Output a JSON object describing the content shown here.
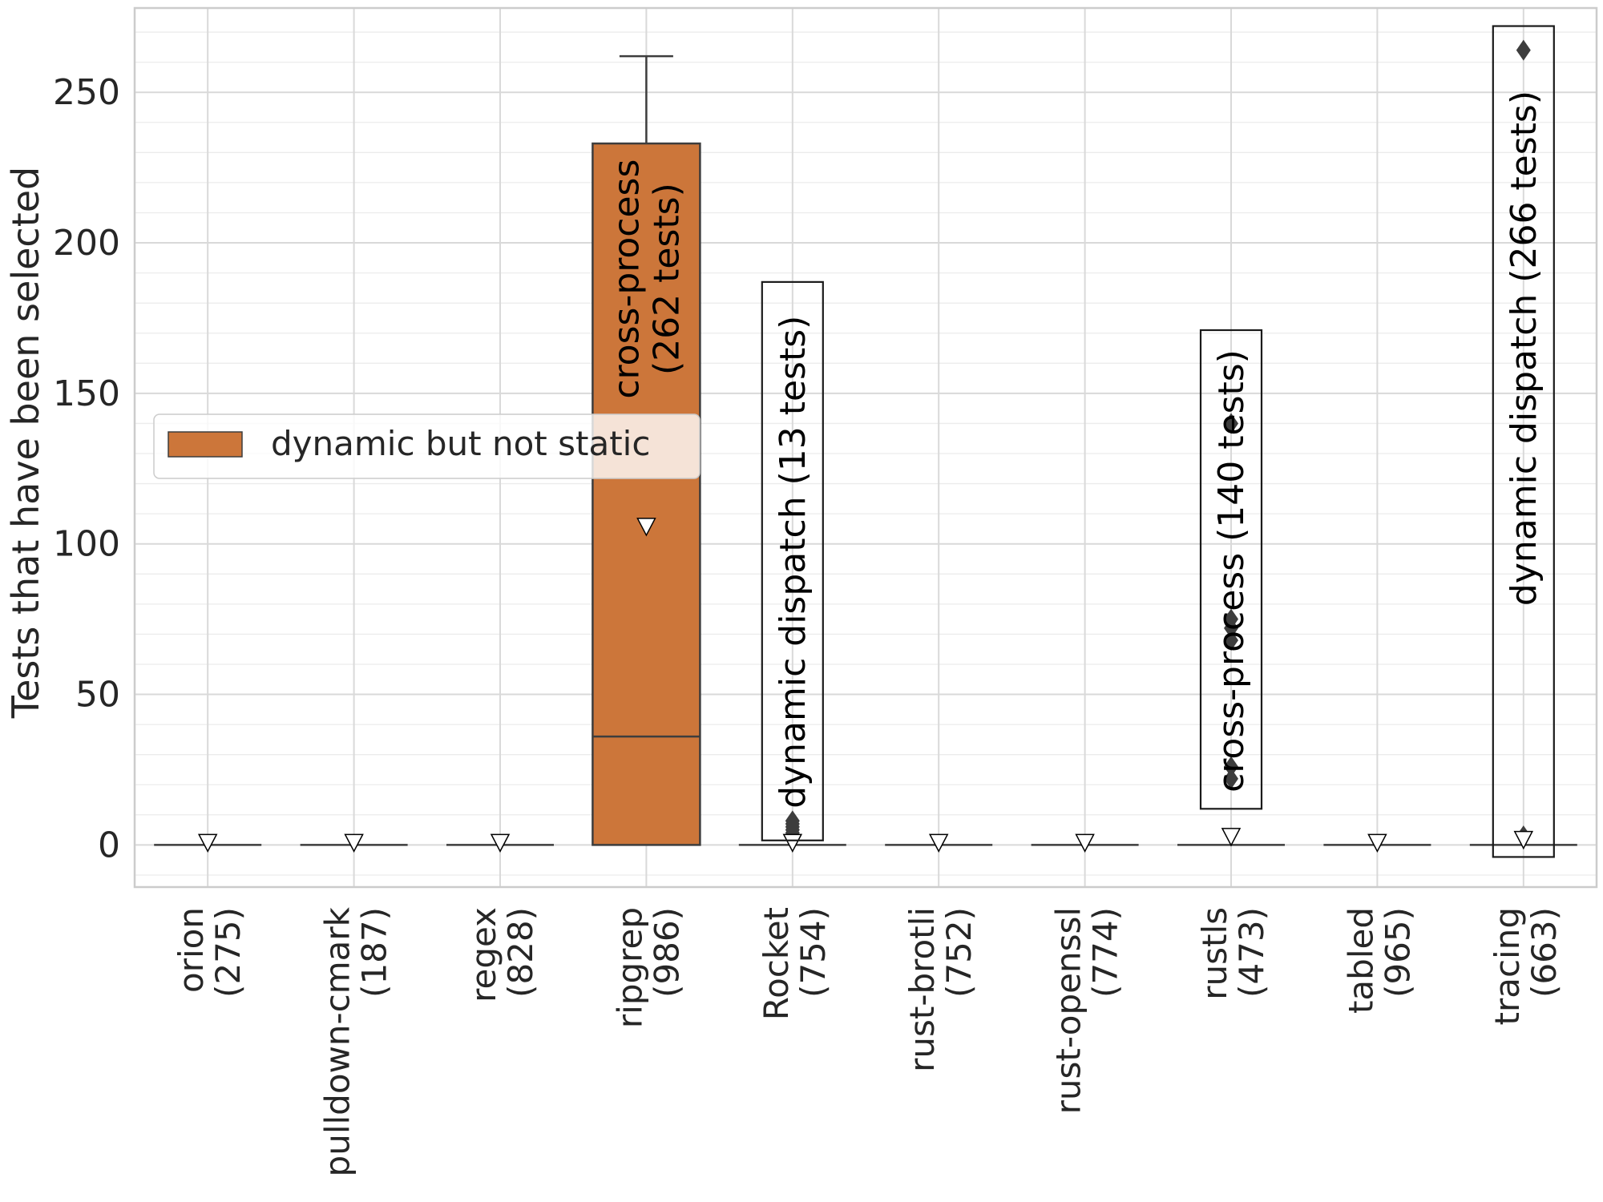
{
  "chart_data": {
    "type": "box",
    "ylabel": "Tests that have been selected",
    "xlabel": "",
    "ylim": [
      -14,
      278
    ],
    "yticks": [
      0,
      50,
      100,
      150,
      200,
      250
    ],
    "grid": true,
    "legend": {
      "placement": "center-left",
      "entries": [
        {
          "label": "dynamic but not static",
          "color": "#cc763a"
        }
      ]
    },
    "categories": [
      {
        "name": "orion",
        "count": "(275)",
        "q1": 0,
        "median": 0,
        "q3": 0,
        "whisker_low": 0,
        "whisker_high": 0,
        "mean": 0,
        "outliers": []
      },
      {
        "name": "pulldown-cmark",
        "count": "(187)",
        "q1": 0,
        "median": 0,
        "q3": 0,
        "whisker_low": 0,
        "whisker_high": 0,
        "mean": 0,
        "outliers": []
      },
      {
        "name": "regex",
        "count": "(828)",
        "q1": 0,
        "median": 0,
        "q3": 0,
        "whisker_low": 0,
        "whisker_high": 0,
        "mean": 0,
        "outliers": []
      },
      {
        "name": "ripgrep",
        "count": "(986)",
        "q1": 0,
        "median": 36,
        "q3": 233,
        "whisker_low": 0,
        "whisker_high": 262,
        "mean": 105,
        "outliers": []
      },
      {
        "name": "Rocket",
        "count": "(754)",
        "q1": 0,
        "median": 0,
        "q3": 0,
        "whisker_low": 0,
        "whisker_high": 0,
        "mean": 0,
        "outliers": [
          4,
          5,
          6,
          7,
          8
        ]
      },
      {
        "name": "rust-brotli",
        "count": "(752)",
        "q1": 0,
        "median": 0,
        "q3": 0,
        "whisker_low": 0,
        "whisker_high": 0,
        "mean": 0,
        "outliers": []
      },
      {
        "name": "rust-openssl",
        "count": "(774)",
        "q1": 0,
        "median": 0,
        "q3": 0,
        "whisker_low": 0,
        "whisker_high": 0,
        "mean": 0,
        "outliers": []
      },
      {
        "name": "rustls",
        "count": "(473)",
        "q1": 0,
        "median": 0,
        "q3": 0,
        "whisker_low": 0,
        "whisker_high": 0,
        "mean": 2,
        "outliers": [
          22,
          26,
          68,
          72,
          75,
          140
        ]
      },
      {
        "name": "tabled",
        "count": "(965)",
        "q1": 0,
        "median": 0,
        "q3": 0,
        "whisker_low": 0,
        "whisker_high": 0,
        "mean": 0,
        "outliers": []
      },
      {
        "name": "tracing",
        "count": "(663)",
        "q1": 0,
        "median": 0,
        "q3": 0,
        "whisker_low": 0,
        "whisker_high": 0,
        "mean": 1,
        "outliers": [
          3,
          264
        ]
      }
    ],
    "annotations": [
      {
        "category": "ripgrep",
        "lines": [
          "cross-process",
          "(262 tests)"
        ],
        "y_center": 188,
        "boxed": false
      },
      {
        "category": "Rocket",
        "lines": [
          "dynamic dispatch (13 tests)"
        ],
        "y_center": 94,
        "boxed": true,
        "box_y": [
          1.5,
          187
        ]
      },
      {
        "category": "rustls",
        "lines": [
          "cross-process (140 tests)"
        ],
        "y_center": 91,
        "boxed": true,
        "box_y": [
          12,
          171
        ]
      },
      {
        "category": "tracing",
        "lines": [
          "dynamic dispatch (266 tests)"
        ],
        "y_center": 165,
        "boxed": true,
        "box_y": [
          -4,
          272
        ]
      }
    ]
  }
}
